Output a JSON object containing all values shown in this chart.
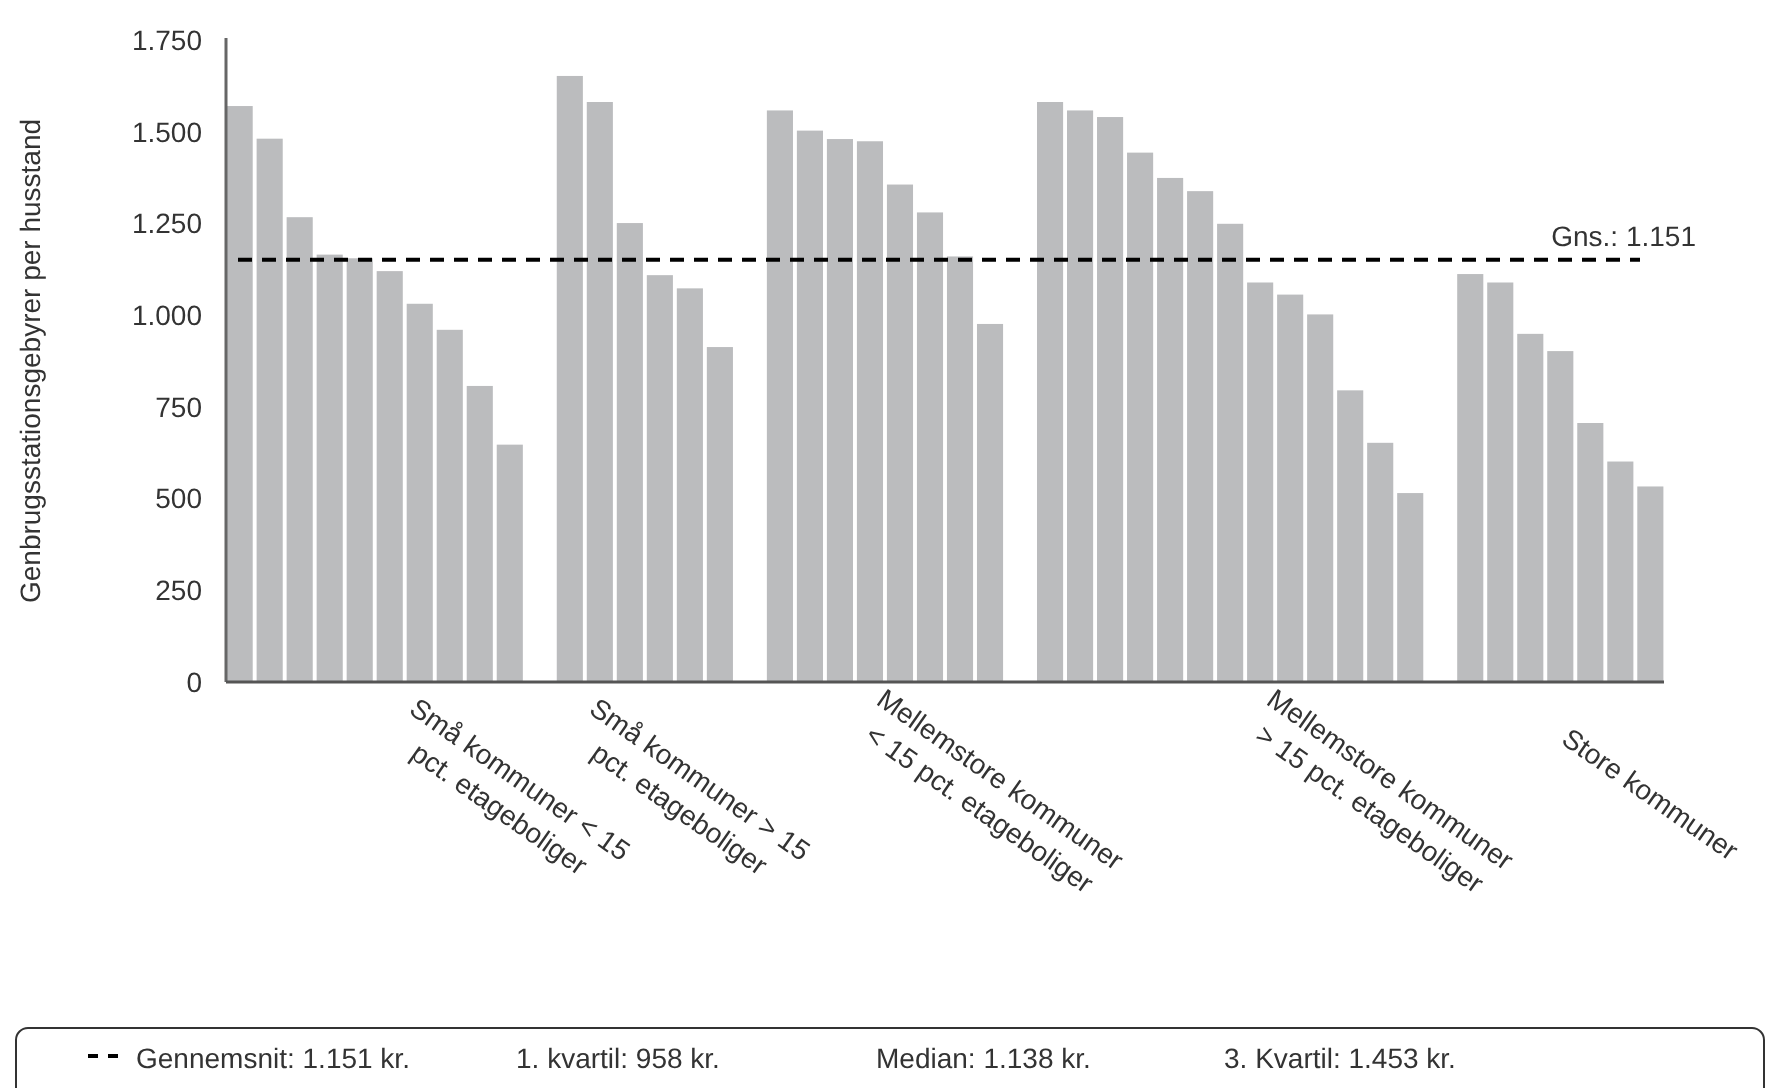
{
  "chart_data": {
    "type": "bar",
    "ylabel": "Genbrugsstationsgebyrer per husstand",
    "categories": [
      null,
      null,
      null,
      null,
      null,
      null,
      null,
      null,
      null,
      "Små kommuner < 15\npct. etageboliger",
      null,
      null,
      null,
      null,
      null,
      "Små kommuner > 15\npct. etageboliger",
      null,
      null,
      null,
      null,
      null,
      null,
      null,
      null,
      null,
      "Mellemstore kommuner\n< 15 pct. etageboliger",
      null,
      null,
      null,
      null,
      null,
      null,
      null,
      null,
      null,
      null,
      null,
      null,
      "Mellemstore kommuner\n> 15 pct. etageboliger",
      null,
      null,
      null,
      null,
      null,
      null,
      null,
      null,
      "Store kommuner"
    ],
    "values": [
      1570,
      1481,
      1267,
      1165,
      1155,
      1120,
      1031,
      960,
      807,
      647,
      null,
      1652,
      1581,
      1251,
      1109,
      1073,
      913,
      null,
      1558,
      1503,
      1480,
      1474,
      1356,
      1280,
      1160,
      976,
      null,
      1581,
      1558,
      1540,
      1443,
      1374,
      1338,
      1249,
      1089,
      1056,
      1002,
      795,
      652,
      515,
      null,
      1112,
      1089,
      949,
      902,
      706,
      601,
      533
    ],
    "color": "#bbbcbe",
    "ylim": [
      0,
      1750
    ],
    "yticks": [
      0,
      {
        "value": 250,
        "label": "250"
      },
      {
        "value": 500,
        "label": "500"
      },
      {
        "value": 750,
        "label": "750"
      },
      {
        "value": 1000,
        "label": "1.000"
      },
      {
        "value": 1250,
        "label": "1.250"
      },
      {
        "value": 1500,
        "label": "1.500"
      },
      {
        "value": 1750,
        "label": "1.750"
      }
    ],
    "grid": false,
    "ref_lines": [
      {
        "axis": "y",
        "value": 1151,
        "label": "Gns.: 1.151",
        "color": "#000000",
        "line_style": "dashed"
      }
    ],
    "annotations": [
      "Gennemsnit: 1.151 kr.",
      "1. kvartil: 958 kr.",
      "Median: 1.138 kr.",
      "3. Kvartil: 1.453 kr."
    ]
  }
}
